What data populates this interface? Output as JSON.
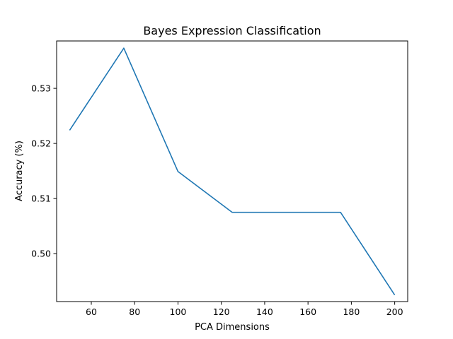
{
  "chart_data": {
    "type": "line",
    "title": "Bayes Expression Classification",
    "xlabel": "PCA Dimensions",
    "ylabel": "Accuracy (%)",
    "xlim": [
      44,
      206
    ],
    "ylim": [
      0.4913,
      0.5386
    ],
    "grid": false,
    "x_ticks": [
      60,
      80,
      100,
      120,
      140,
      160,
      180,
      200
    ],
    "y_ticks": [
      0.5,
      0.51,
      0.52,
      0.53
    ],
    "x_tick_labels": [
      "60",
      "80",
      "100",
      "120",
      "140",
      "160",
      "180",
      "200"
    ],
    "y_tick_labels": [
      "0.50",
      "0.51",
      "0.52",
      "0.53"
    ],
    "series": [
      {
        "color": "#1f77b4",
        "x": [
          50,
          75,
          100,
          125,
          150,
          175,
          200
        ],
        "y": [
          0.5224,
          0.5373,
          0.5149,
          0.5075,
          0.5075,
          0.5075,
          0.4925
        ]
      }
    ]
  }
}
